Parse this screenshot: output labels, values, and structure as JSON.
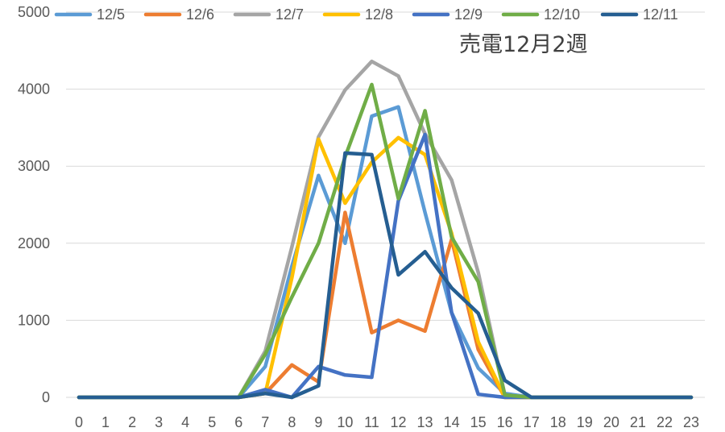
{
  "chart_data": {
    "type": "line",
    "title": "売電12月2週",
    "xlabel": "",
    "ylabel": "",
    "categories": [
      "0",
      "1",
      "2",
      "3",
      "4",
      "5",
      "6",
      "7",
      "8",
      "9",
      "10",
      "11",
      "12",
      "13",
      "14",
      "15",
      "16",
      "17",
      "18",
      "19",
      "20",
      "21",
      "22",
      "23"
    ],
    "ylim": [
      0,
      5000
    ],
    "yticks": [
      0,
      1000,
      2000,
      3000,
      4000,
      5000
    ],
    "grid": true,
    "legend_position": "top",
    "series": [
      {
        "name": "12/5",
        "color": "#5b9bd5",
        "values": [
          0,
          0,
          0,
          0,
          0,
          0,
          0,
          400,
          1700,
          2880,
          2000,
          3650,
          3770,
          2400,
          1100,
          380,
          50,
          0,
          0,
          0,
          0,
          0,
          0,
          0
        ]
      },
      {
        "name": "12/6",
        "color": "#ed7d31",
        "values": [
          0,
          0,
          0,
          0,
          0,
          0,
          0,
          50,
          420,
          200,
          2400,
          840,
          1000,
          860,
          2050,
          620,
          0,
          0,
          0,
          0,
          0,
          0,
          0,
          0
        ]
      },
      {
        "name": "12/7",
        "color": "#a5a5a5",
        "values": [
          0,
          0,
          0,
          0,
          0,
          0,
          0,
          600,
          1950,
          3380,
          3990,
          4360,
          4170,
          3420,
          2820,
          1620,
          30,
          0,
          0,
          0,
          0,
          0,
          0,
          0
        ]
      },
      {
        "name": "12/8",
        "color": "#ffc000",
        "values": [
          0,
          0,
          0,
          0,
          0,
          0,
          0,
          50,
          1550,
          3350,
          2520,
          3050,
          3370,
          3150,
          2130,
          720,
          0,
          0,
          0,
          0,
          0,
          0,
          0,
          0
        ]
      },
      {
        "name": "12/9",
        "color": "#4472c4",
        "values": [
          0,
          0,
          0,
          0,
          0,
          0,
          0,
          100,
          0,
          400,
          290,
          260,
          2550,
          3410,
          1100,
          40,
          0,
          0,
          0,
          0,
          0,
          0,
          0,
          0
        ]
      },
      {
        "name": "12/10",
        "color": "#70ad47",
        "values": [
          0,
          0,
          0,
          0,
          0,
          0,
          0,
          560,
          1300,
          2000,
          3120,
          4060,
          2580,
          3720,
          2080,
          1500,
          30,
          0,
          0,
          0,
          0,
          0,
          0,
          0
        ]
      },
      {
        "name": "12/11",
        "color": "#255e91",
        "values": [
          0,
          0,
          0,
          0,
          0,
          0,
          0,
          50,
          0,
          150,
          3170,
          3150,
          1590,
          1890,
          1420,
          1090,
          220,
          0,
          0,
          0,
          0,
          0,
          0,
          0
        ]
      }
    ]
  }
}
